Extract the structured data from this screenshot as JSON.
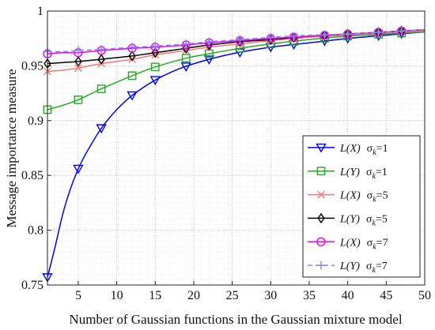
{
  "chart_data": {
    "type": "line",
    "title": "",
    "xlabel": "Number of Gaussian functions in the Gaussian mixture model",
    "ylabel": "Message importance measure",
    "xlim": [
      1,
      50
    ],
    "ylim": [
      0.75,
      1.0
    ],
    "xticks": [
      5,
      10,
      15,
      20,
      25,
      30,
      35,
      40,
      45,
      50
    ],
    "yticks": [
      0.75,
      0.8,
      0.85,
      0.9,
      0.95,
      1.0
    ],
    "xtick_labels": [
      "5",
      "10",
      "15",
      "20",
      "25",
      "30",
      "35",
      "40",
      "45",
      "50"
    ],
    "ytick_labels": [
      "0.75",
      "0.8",
      "0.85",
      "0.9",
      "0.95",
      "1"
    ],
    "grid": true,
    "minor_grid": true,
    "legend_position": "right",
    "series": [
      {
        "func": "L(X)",
        "sigma": "1",
        "color": "#0000ee",
        "marker": "triangle-down",
        "dash": "solid",
        "x": [
          1,
          2,
          3,
          4,
          5,
          6,
          8,
          10,
          12,
          15,
          18,
          21,
          25,
          30,
          35,
          40,
          45,
          50
        ],
        "y": [
          0.757,
          0.785,
          0.815,
          0.838,
          0.856,
          0.87,
          0.893,
          0.91,
          0.923,
          0.937,
          0.947,
          0.954,
          0.961,
          0.967,
          0.971,
          0.975,
          0.978,
          0.981
        ],
        "marker_x": [
          1,
          5,
          8,
          12,
          15,
          19,
          22,
          26,
          30,
          33,
          37,
          40,
          44,
          47
        ]
      },
      {
        "func": "L(Y)",
        "sigma": "1",
        "color": "#22aa22",
        "marker": "square",
        "dash": "solid",
        "x": [
          1,
          3,
          5,
          8,
          12,
          15,
          19,
          22,
          26,
          30,
          35,
          40,
          45,
          50
        ],
        "y": [
          0.91,
          0.914,
          0.919,
          0.929,
          0.941,
          0.949,
          0.957,
          0.961,
          0.966,
          0.97,
          0.974,
          0.977,
          0.979,
          0.981
        ],
        "marker_x": [
          1,
          5,
          8,
          12,
          15,
          19,
          22,
          26,
          30,
          33,
          37,
          40,
          44,
          47
        ]
      },
      {
        "func": "L(X)",
        "sigma": "5",
        "color": "#f07878",
        "marker": "x",
        "dash": "solid",
        "x": [
          1,
          3,
          5,
          8,
          12,
          15,
          19,
          22,
          26,
          30,
          35,
          40,
          45,
          50
        ],
        "y": [
          0.945,
          0.946,
          0.948,
          0.952,
          0.956,
          0.96,
          0.964,
          0.967,
          0.97,
          0.973,
          0.976,
          0.978,
          0.98,
          0.982
        ],
        "marker_x": [
          1,
          5,
          8,
          12,
          15,
          19,
          22,
          26,
          30,
          33,
          37,
          40,
          44,
          47
        ]
      },
      {
        "func": "L(Y)",
        "sigma": "5",
        "color": "#000000",
        "marker": "diamond",
        "dash": "solid",
        "x": [
          1,
          3,
          5,
          8,
          12,
          15,
          19,
          22,
          26,
          30,
          35,
          40,
          45,
          50
        ],
        "y": [
          0.952,
          0.953,
          0.954,
          0.956,
          0.959,
          0.962,
          0.966,
          0.969,
          0.972,
          0.974,
          0.977,
          0.979,
          0.981,
          0.983
        ],
        "marker_x": [
          1,
          5,
          8,
          12,
          15,
          19,
          22,
          26,
          30,
          33,
          37,
          40,
          44,
          47
        ]
      },
      {
        "func": "L(X)",
        "sigma": "7",
        "color": "#ee00ee",
        "marker": "circle",
        "dash": "solid",
        "x": [
          1,
          3,
          5,
          8,
          12,
          15,
          19,
          22,
          26,
          30,
          35,
          40,
          45,
          50
        ],
        "y": [
          0.961,
          0.962,
          0.962,
          0.964,
          0.966,
          0.967,
          0.969,
          0.971,
          0.973,
          0.975,
          0.977,
          0.979,
          0.981,
          0.983
        ],
        "marker_x": [
          1,
          5,
          8,
          12,
          15,
          19,
          22,
          26,
          30,
          33,
          37,
          40,
          44,
          47
        ]
      },
      {
        "func": "L(Y)",
        "sigma": "7",
        "color": "#7a8cf0",
        "marker": "plus",
        "dash": "dashed",
        "x": [
          1,
          3,
          5,
          8,
          12,
          15,
          19,
          22,
          26,
          30,
          35,
          40,
          45,
          50
        ],
        "y": [
          0.963,
          0.963,
          0.964,
          0.965,
          0.967,
          0.968,
          0.97,
          0.972,
          0.974,
          0.976,
          0.978,
          0.979,
          0.981,
          0.983
        ],
        "marker_x": [
          1,
          5,
          8,
          12,
          15,
          19,
          22,
          26,
          30,
          33,
          37,
          40,
          44,
          47
        ]
      }
    ]
  }
}
